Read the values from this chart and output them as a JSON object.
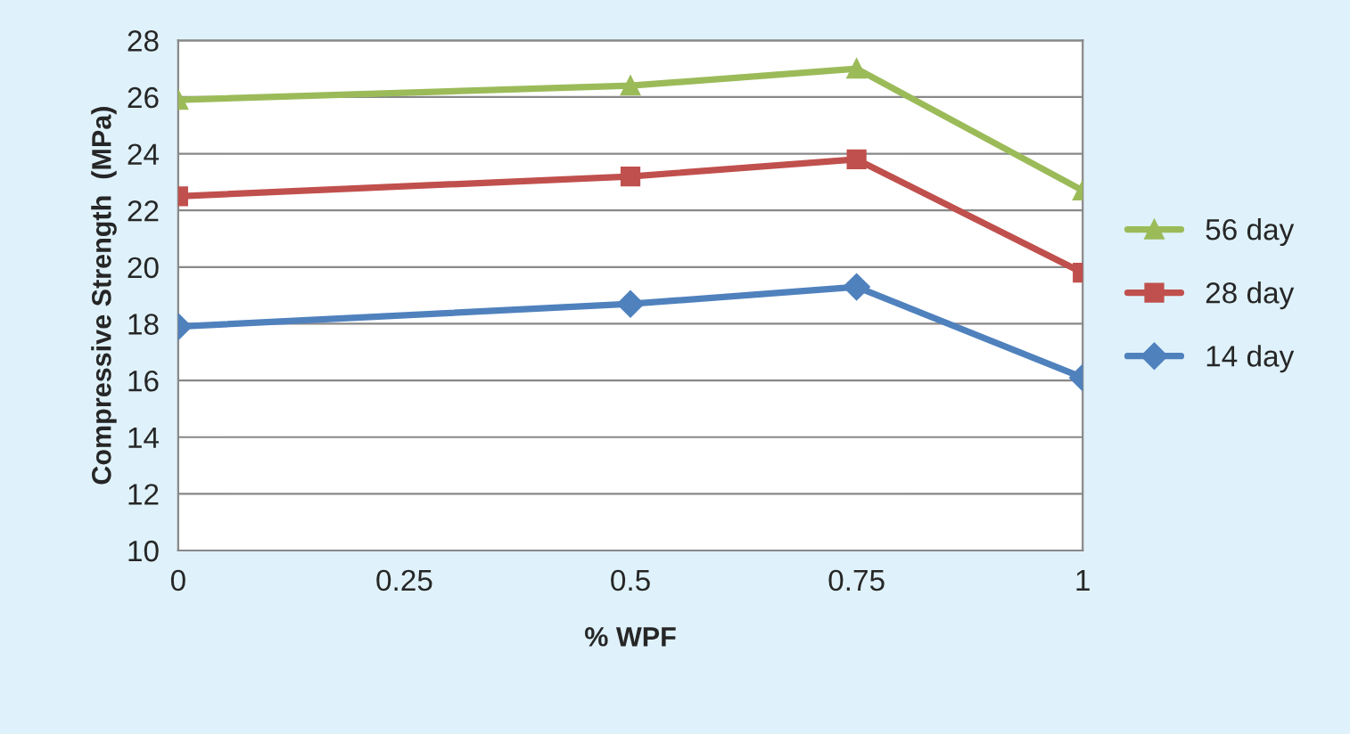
{
  "chart_data": {
    "type": "line",
    "xlabel": "% WPF",
    "ylabel": "Compressive Strength  (MPa)",
    "x": [
      0,
      0.5,
      0.75,
      1
    ],
    "series": [
      {
        "name": "56 day",
        "color": "#9bbb59",
        "marker": "triangle",
        "values": [
          25.9,
          26.4,
          27.0,
          22.7
        ]
      },
      {
        "name": "28 day",
        "color": "#c0504d",
        "marker": "square",
        "values": [
          22.5,
          23.2,
          23.8,
          19.8
        ]
      },
      {
        "name": "14 day",
        "color": "#4f81bd",
        "marker": "diamond",
        "values": [
          17.9,
          18.7,
          19.3,
          16.1
        ]
      }
    ],
    "xlim": [
      0,
      1
    ],
    "xticks": [
      0,
      0.25,
      0.5,
      0.75,
      1
    ],
    "ylim": [
      10,
      28
    ],
    "yticks": [
      10,
      12,
      14,
      16,
      18,
      20,
      22,
      24,
      26,
      28
    ],
    "grid": "y",
    "legend": "right",
    "line_style": "solid"
  }
}
